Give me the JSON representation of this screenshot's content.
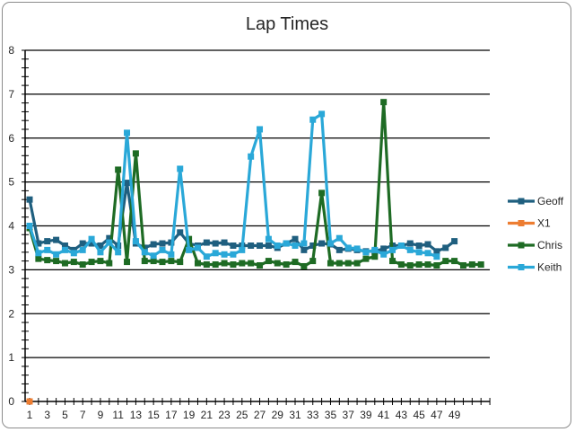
{
  "chart_data": {
    "type": "line",
    "title": "Lap Times",
    "xlabel": "",
    "ylabel": "",
    "ylim": [
      0,
      8
    ],
    "yticks": [
      0,
      1,
      2,
      3,
      4,
      5,
      6,
      7,
      8
    ],
    "xlim": [
      1,
      53
    ],
    "xtick_labels": [
      1,
      3,
      5,
      7,
      9,
      11,
      13,
      15,
      17,
      19,
      21,
      23,
      25,
      27,
      29,
      31,
      33,
      35,
      37,
      39,
      41,
      43,
      45,
      47,
      49
    ],
    "grid": true,
    "legend_position": "right",
    "series": [
      {
        "name": "Geoff",
        "color": "#1f5f7f",
        "marker": "square",
        "x": [
          1,
          2,
          3,
          4,
          5,
          6,
          7,
          8,
          9,
          10,
          11,
          12,
          13,
          14,
          15,
          16,
          17,
          18,
          19,
          20,
          21,
          22,
          23,
          24,
          25,
          26,
          27,
          28,
          29,
          30,
          31,
          32,
          33,
          34,
          35,
          36,
          37,
          38,
          39,
          40,
          41,
          42,
          43,
          44,
          45,
          46,
          47,
          48,
          49
        ],
        "values": [
          4.6,
          3.6,
          3.65,
          3.68,
          3.55,
          3.45,
          3.6,
          3.6,
          3.55,
          3.72,
          3.55,
          4.98,
          3.6,
          3.5,
          3.58,
          3.6,
          3.62,
          3.85,
          3.6,
          3.55,
          3.62,
          3.6,
          3.62,
          3.55,
          3.55,
          3.55,
          3.55,
          3.55,
          3.5,
          3.6,
          3.7,
          3.45,
          3.55,
          3.6,
          3.58,
          3.45,
          3.48,
          3.45,
          3.42,
          3.42,
          3.48,
          3.55,
          3.55,
          3.6,
          3.55,
          3.58,
          3.42,
          3.5,
          3.65
        ]
      },
      {
        "name": "X1",
        "color": "#ed7d31",
        "marker": "square",
        "x": [
          1
        ],
        "values": [
          0
        ]
      },
      {
        "name": "Chris",
        "color": "#1e6b24",
        "marker": "square",
        "x": [
          1,
          2,
          3,
          4,
          5,
          6,
          7,
          8,
          9,
          10,
          11,
          12,
          13,
          14,
          15,
          16,
          17,
          18,
          19,
          20,
          21,
          22,
          23,
          24,
          25,
          26,
          27,
          28,
          29,
          30,
          31,
          32,
          33,
          34,
          35,
          36,
          37,
          38,
          39,
          40,
          41,
          42,
          43,
          44,
          45,
          46,
          47,
          48,
          49,
          50,
          51,
          52
        ],
        "values": [
          3.95,
          3.25,
          3.22,
          3.2,
          3.15,
          3.18,
          3.12,
          3.18,
          3.2,
          3.15,
          5.28,
          3.18,
          5.65,
          3.2,
          3.2,
          3.18,
          3.2,
          3.18,
          3.7,
          3.15,
          3.12,
          3.12,
          3.15,
          3.12,
          3.15,
          3.15,
          3.1,
          3.2,
          3.15,
          3.12,
          3.18,
          3.08,
          3.2,
          4.75,
          3.15,
          3.15,
          3.15,
          3.15,
          3.25,
          3.3,
          6.82,
          3.2,
          3.12,
          3.1,
          3.12,
          3.12,
          3.1,
          3.2,
          3.2,
          3.1,
          3.12,
          3.12
        ]
      },
      {
        "name": "Keith",
        "color": "#2aa8d8",
        "marker": "square",
        "x": [
          1,
          2,
          3,
          4,
          5,
          6,
          7,
          8,
          9,
          10,
          11,
          12,
          13,
          14,
          15,
          16,
          17,
          18,
          19,
          20,
          21,
          22,
          23,
          24,
          25,
          26,
          27,
          28,
          29,
          30,
          31,
          32,
          33,
          34,
          35,
          36,
          37,
          38,
          39,
          40,
          41,
          42,
          43,
          44,
          45,
          46,
          47
        ],
        "values": [
          4.0,
          3.38,
          3.45,
          3.35,
          3.45,
          3.38,
          3.45,
          3.7,
          3.4,
          3.62,
          3.4,
          6.12,
          3.65,
          3.4,
          3.32,
          3.45,
          3.35,
          5.3,
          3.45,
          3.5,
          3.3,
          3.38,
          3.35,
          3.35,
          3.45,
          5.58,
          6.2,
          3.7,
          3.55,
          3.6,
          3.55,
          3.6,
          6.42,
          6.55,
          3.6,
          3.72,
          3.5,
          3.48,
          3.4,
          3.45,
          3.35,
          3.45,
          3.55,
          3.45,
          3.4,
          3.38,
          3.3
        ]
      }
    ]
  }
}
